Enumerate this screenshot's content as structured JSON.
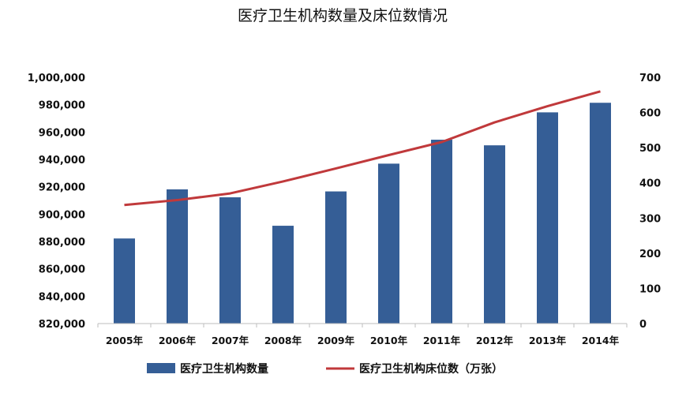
{
  "chart_data": {
    "type": "bar",
    "title": "医疗卫生机构数量及床位数情况",
    "categories": [
      "2005年",
      "2006年",
      "2007年",
      "2008年",
      "2009年",
      "2010年",
      "2011年",
      "2012年",
      "2013年",
      "2014年"
    ],
    "series": [
      {
        "name": "医疗卫生机构数量",
        "type": "bar",
        "axis": "left",
        "color": "#355E96",
        "values": [
          882200,
          918100,
          912300,
          891500,
          916600,
          936900,
          954400,
          950300,
          974400,
          981400
        ]
      },
      {
        "name": "医疗卫生机构床位数（万张）",
        "type": "line",
        "axis": "right",
        "color": "#C0393B",
        "values": [
          337,
          351,
          370,
          404,
          441,
          479,
          516,
          572,
          618,
          660
        ]
      }
    ],
    "left_axis": {
      "ylim": [
        820000,
        1000000
      ],
      "ticks": [
        "820,000",
        "840,000",
        "860,000",
        "880,000",
        "900,000",
        "920,000",
        "940,000",
        "960,000",
        "980,000",
        "1,000,000"
      ]
    },
    "right_axis": {
      "ylim": [
        0,
        700
      ],
      "ticks": [
        "0",
        "100",
        "200",
        "300",
        "400",
        "500",
        "600",
        "700"
      ]
    },
    "grid": false,
    "legend_position": "bottom"
  }
}
